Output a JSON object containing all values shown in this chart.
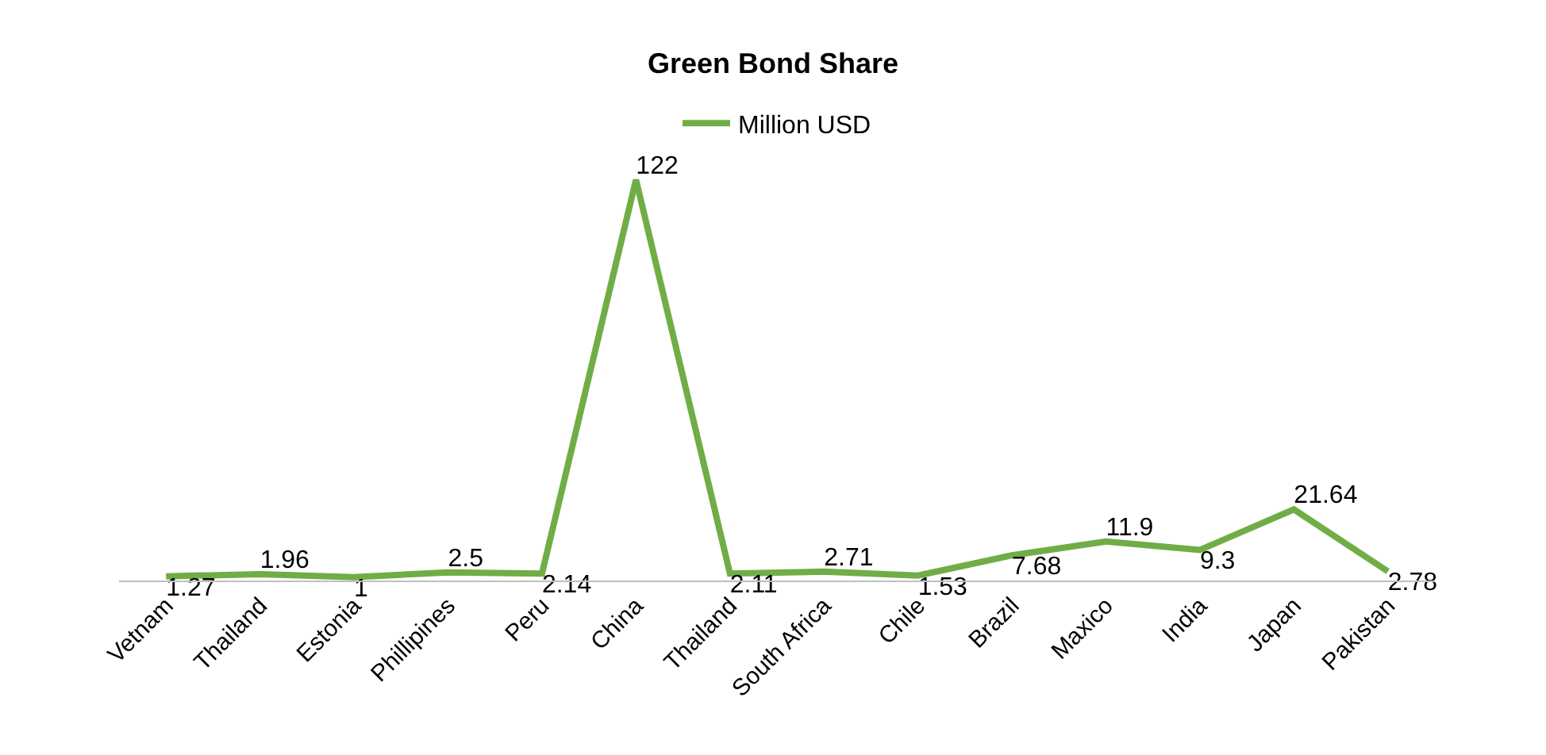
{
  "chart_data": {
    "type": "line",
    "title": "Green Bond Share",
    "categories": [
      "Vetnam",
      "Thailand",
      "Estonia",
      "Phillipines",
      "Peru",
      "China",
      "Thailand",
      "South Africa",
      "Chile",
      "Brazil",
      "Maxico",
      "India",
      "Japan",
      "Pakistan"
    ],
    "series": [
      {
        "name": "Million USD",
        "color": "#70ad47",
        "values": [
          1.27,
          1.96,
          1,
          2.5,
          2.14,
          122,
          2.11,
          2.71,
          1.53,
          7.68,
          11.9,
          9.3,
          21.64,
          2.78
        ]
      }
    ],
    "data_labels": true,
    "legend": "top",
    "marker": "none",
    "line_style": "solid"
  }
}
